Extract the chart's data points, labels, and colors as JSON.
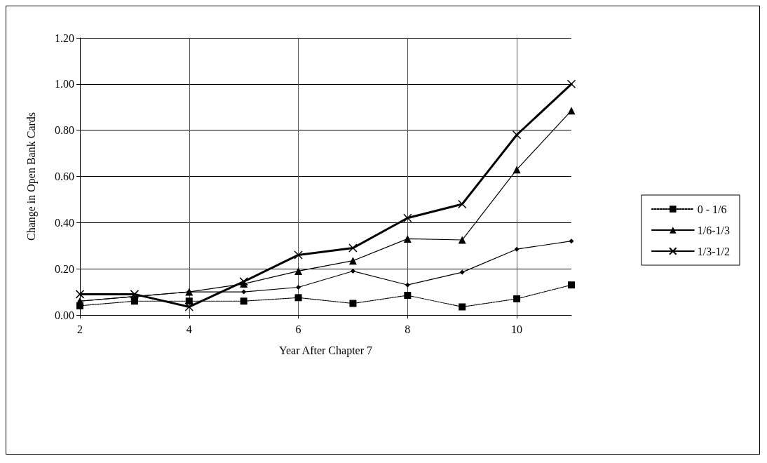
{
  "chart_data": {
    "type": "line",
    "xlabel": "Year After Chapter 7",
    "ylabel": "Change in Open Bank Cards",
    "x": [
      2,
      3,
      4,
      5,
      6,
      7,
      8,
      9,
      10,
      11
    ],
    "xlim": [
      2,
      11
    ],
    "xticks": [
      2,
      4,
      6,
      8,
      10
    ],
    "ylim": [
      0,
      1.2
    ],
    "yticks": [
      {
        "value": 0,
        "label": "0.00"
      },
      {
        "value": 0.2,
        "label": "0.20"
      },
      {
        "value": 0.4,
        "label": "0.40"
      },
      {
        "value": 0.6,
        "label": "0.60"
      },
      {
        "value": 0.8,
        "label": "0.80"
      },
      {
        "value": 1,
        "label": "1.00"
      },
      {
        "value": 1.2,
        "label": "1.20"
      }
    ],
    "grid": true,
    "legend": "right",
    "series": [
      {
        "color": "#000000",
        "marker": "diamond",
        "line_style": "solid",
        "values": [
          0.06,
          0.08,
          0.1,
          0.1,
          0.12,
          0.19,
          0.13,
          0.185,
          0.285,
          0.32
        ]
      },
      {
        "name": "0 - 1/6",
        "color": "#000000",
        "marker": "square",
        "line_style": "dotted",
        "values": [
          0.04,
          0.06,
          0.06,
          0.06,
          0.075,
          0.05,
          0.085,
          0.035,
          0.07,
          0.13
        ]
      },
      {
        "name": "1/6-1/3",
        "color": "#000000",
        "marker": "triangle",
        "line_style": "solid",
        "values": [
          0.06,
          0.08,
          0.1,
          0.135,
          0.19,
          0.235,
          0.33,
          0.325,
          0.63,
          0.885
        ]
      },
      {
        "name": "1/3-1/2",
        "color": "#000000",
        "marker": "cross",
        "line_style": "solid",
        "values": [
          0.09,
          0.09,
          0.035,
          0.145,
          0.26,
          0.29,
          0.42,
          0.48,
          0.78,
          1.0
        ]
      }
    ]
  }
}
